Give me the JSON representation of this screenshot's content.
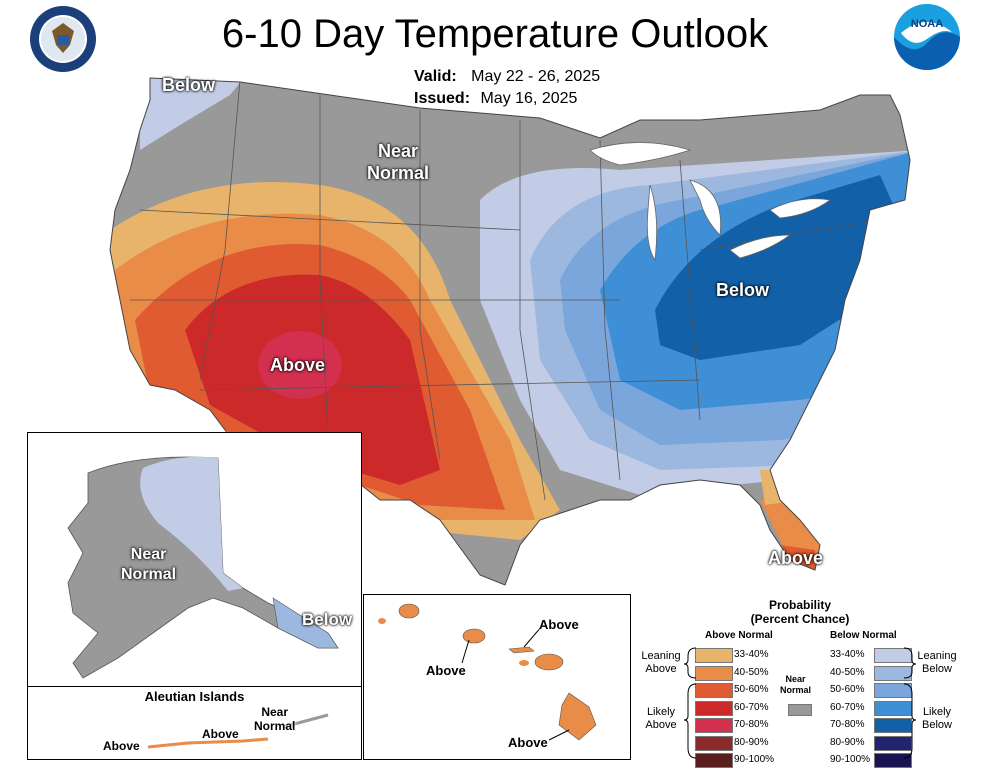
{
  "title": "6-10 Day Temperature Outlook",
  "valid_label": "Valid:",
  "valid_value": "May 22 - 26, 2025",
  "issued_label": "Issued:",
  "issued_value": "May 16, 2025",
  "logos": {
    "doc": "department-of-commerce-seal",
    "noaa": "NOAA",
    "doc_ring_text": "DEPARTMENT OF COMMERCE · UNITED STATES OF AMERICA"
  },
  "map_labels": {
    "below_nw": "Below",
    "near_normal": "Near\nNormal",
    "above_sw": "Above",
    "below_ne": "Below",
    "above_fl": "Above",
    "ak_near_normal": "Near\nNormal",
    "ak_below": "Below",
    "aleutian_title": "Aleutian Islands",
    "aleutian_near_normal": "Near\nNormal",
    "aleutian_above1": "Above",
    "aleutian_above2": "Above",
    "hi_above1": "Above",
    "hi_above2": "Above",
    "hi_above3": "Above"
  },
  "legend": {
    "title": "Probability\n(Percent Chance)",
    "above_header": "Above Normal",
    "below_header": "Below Normal",
    "leaning_above": "Leaning\nAbove",
    "likely_above": "Likely\nAbove",
    "leaning_below": "Leaning\nBelow",
    "likely_below": "Likely\nBelow",
    "near_normal": "Near\nNormal",
    "above": [
      {
        "range": "33-40%",
        "color": "#e8b46b"
      },
      {
        "range": "40-50%",
        "color": "#e88c48"
      },
      {
        "range": "50-60%",
        "color": "#e05a32"
      },
      {
        "range": "60-70%",
        "color": "#cc2a2a"
      },
      {
        "range": "70-80%",
        "color": "#d32f4f"
      },
      {
        "range": "80-90%",
        "color": "#8b2a2a"
      },
      {
        "range": "90-100%",
        "color": "#5a1e1e"
      }
    ],
    "below": [
      {
        "range": "33-40%",
        "color": "#c3cce6"
      },
      {
        "range": "40-50%",
        "color": "#9db8de"
      },
      {
        "range": "50-60%",
        "color": "#7aa6db"
      },
      {
        "range": "60-70%",
        "color": "#3f8fd6"
      },
      {
        "range": "70-80%",
        "color": "#1260a8"
      },
      {
        "range": "80-90%",
        "color": "#232370"
      },
      {
        "range": "90-100%",
        "color": "#1a1450"
      }
    ],
    "near_normal_color": "#999999"
  }
}
